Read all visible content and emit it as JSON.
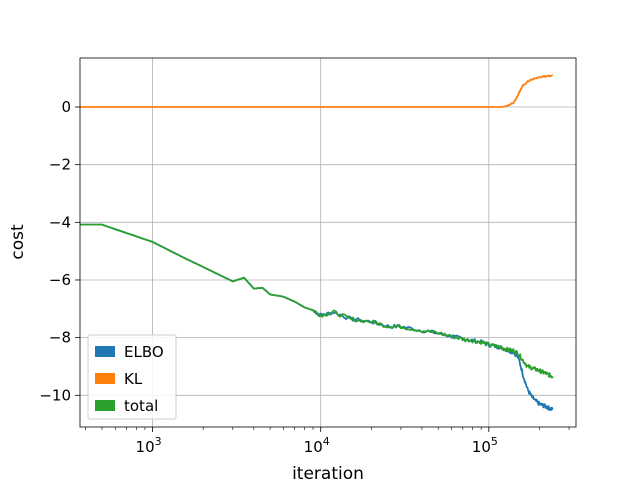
{
  "chart_data": {
    "type": "line",
    "title": "",
    "xlabel": "iteration",
    "ylabel": "cost",
    "xscale": "log",
    "xlim": [
      370,
      330000
    ],
    "ylim": [
      -11.1,
      1.7
    ],
    "grid": true,
    "legend": {
      "placement": "lower-left",
      "handle": "patch"
    },
    "x_ticks": [
      {
        "value": 1000,
        "base": "10",
        "exp": "3"
      },
      {
        "value": 10000,
        "base": "10",
        "exp": "4"
      },
      {
        "value": 100000,
        "base": "10",
        "exp": "5"
      }
    ],
    "y_ticks": [
      {
        "value": 0,
        "label": "0"
      },
      {
        "value": -2,
        "label": "−2"
      },
      {
        "value": -4,
        "label": "−4"
      },
      {
        "value": -6,
        "label": "−6"
      },
      {
        "value": -8,
        "label": "−8"
      },
      {
        "value": -10,
        "label": "−10"
      }
    ],
    "series": [
      {
        "name": "ELBO",
        "color": "#1f77b4",
        "x": [
          370,
          500,
          1000,
          1500,
          2000,
          3000,
          3500,
          4000,
          4500,
          5000,
          6000,
          7000,
          8000,
          9000,
          10000,
          12000,
          15000,
          20000,
          25000,
          30000,
          40000,
          50000,
          60000,
          70000,
          80000,
          90000,
          100000,
          110000,
          120000,
          130000,
          140000,
          150000,
          160000,
          170000,
          180000,
          190000,
          200000,
          210000,
          220000,
          230000,
          240000
        ],
        "y": [
          -4.08,
          -4.08,
          -4.68,
          -5.2,
          -5.55,
          -6.05,
          -5.92,
          -6.3,
          -6.27,
          -6.5,
          -6.58,
          -6.75,
          -6.95,
          -7.05,
          -7.22,
          -7.12,
          -7.35,
          -7.45,
          -7.6,
          -7.62,
          -7.75,
          -7.85,
          -7.95,
          -8.05,
          -8.1,
          -8.15,
          -8.25,
          -8.3,
          -8.35,
          -8.45,
          -8.5,
          -8.7,
          -9.3,
          -9.8,
          -10.05,
          -10.2,
          -10.3,
          -10.35,
          -10.4,
          -10.45,
          -10.5
        ]
      },
      {
        "name": "KL",
        "color": "#ff7f0e",
        "x": [
          370,
          1000,
          10000,
          50000,
          100000,
          120000,
          130000,
          140000,
          145000,
          150000,
          155000,
          160000,
          170000,
          180000,
          190000,
          200000,
          210000,
          220000,
          230000,
          240000
        ],
        "y": [
          0,
          0,
          0,
          0,
          0,
          0.0,
          0.05,
          0.15,
          0.28,
          0.45,
          0.62,
          0.75,
          0.88,
          0.95,
          1.0,
          1.03,
          1.05,
          1.07,
          1.08,
          1.1
        ]
      },
      {
        "name": "total",
        "color": "#2ca02c",
        "x": [
          370,
          500,
          1000,
          1500,
          2000,
          3000,
          3500,
          4000,
          4500,
          5000,
          6000,
          7000,
          8000,
          9000,
          10000,
          12000,
          15000,
          20000,
          25000,
          30000,
          40000,
          50000,
          60000,
          70000,
          80000,
          90000,
          100000,
          110000,
          120000,
          130000,
          140000,
          150000,
          160000,
          170000,
          180000,
          190000,
          200000,
          210000,
          220000,
          230000,
          240000
        ],
        "y": [
          -4.08,
          -4.08,
          -4.68,
          -5.2,
          -5.55,
          -6.05,
          -5.92,
          -6.3,
          -6.27,
          -6.5,
          -6.58,
          -6.75,
          -6.95,
          -7.05,
          -7.22,
          -7.12,
          -7.35,
          -7.45,
          -7.6,
          -7.62,
          -7.75,
          -7.85,
          -7.95,
          -8.05,
          -8.1,
          -8.15,
          -8.25,
          -8.3,
          -8.35,
          -8.42,
          -8.45,
          -8.55,
          -8.8,
          -9.0,
          -9.05,
          -9.1,
          -9.15,
          -9.2,
          -9.25,
          -9.3,
          -9.35
        ]
      }
    ]
  }
}
